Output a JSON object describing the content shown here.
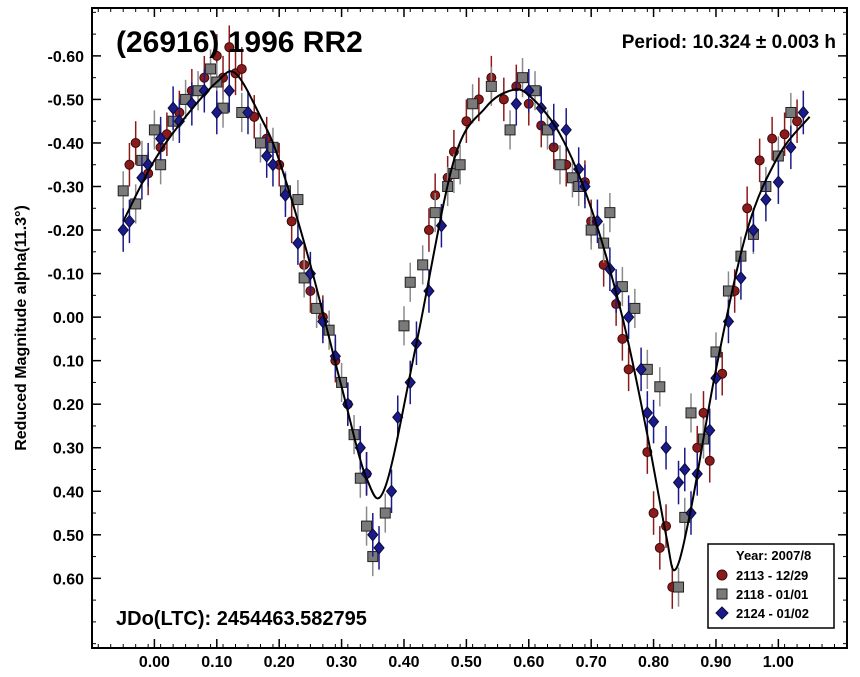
{
  "chart_data": {
    "type": "scatter",
    "title": "(26916) 1996 RR2",
    "period_text": "Period: 10.324 ± 0.003 h",
    "jd_text": "JDo(LTC): 2454463.582795",
    "ylabel": "Reduced Magnitude alpha(11.3°)",
    "xlabel": "",
    "xlim": [
      -0.1,
      1.11
    ],
    "ylim": [
      -0.71,
      0.76
    ],
    "y_inverted": true,
    "x_ticks": [
      "0.00",
      "0.10",
      "0.20",
      "0.30",
      "0.40",
      "0.50",
      "0.60",
      "0.70",
      "0.80",
      "0.90",
      "1.00"
    ],
    "y_ticks": [
      "-0.60",
      "-0.50",
      "-0.40",
      "-0.30",
      "-0.20",
      "-0.10",
      "0.00",
      "0.10",
      "0.20",
      "0.30",
      "0.40",
      "0.50",
      "0.60"
    ],
    "legend": {
      "title": "Year: 2007/8",
      "position": "bottom-right",
      "entries": [
        {
          "label": "2113 - 12/29",
          "color": "#8b1a1a",
          "marker": "circle"
        },
        {
          "label": "2118 - 01/01",
          "color": "#7a7a7a",
          "marker": "square"
        },
        {
          "label": "2124 - 01/02",
          "color": "#1a1a8b",
          "marker": "diamond"
        }
      ]
    },
    "fit_curve": {
      "x": [
        -0.05,
        0.0,
        0.05,
        0.1,
        0.13,
        0.17,
        0.2,
        0.25,
        0.3,
        0.34,
        0.37,
        0.42,
        0.48,
        0.53,
        0.57,
        0.6,
        0.65,
        0.7,
        0.75,
        0.79,
        0.82,
        0.835,
        0.86,
        0.9,
        0.95,
        1.0,
        1.05
      ],
      "y": [
        -0.22,
        -0.36,
        -0.46,
        -0.54,
        -0.56,
        -0.46,
        -0.36,
        -0.12,
        0.16,
        0.37,
        0.39,
        0.06,
        -0.36,
        -0.48,
        -0.52,
        -0.51,
        -0.42,
        -0.25,
        0.0,
        0.27,
        0.5,
        0.58,
        0.44,
        0.12,
        -0.2,
        -0.37,
        -0.46
      ]
    },
    "series": [
      {
        "name": "2113 - 12/29",
        "x": [
          -0.04,
          -0.03,
          -0.01,
          0.01,
          0.02,
          0.04,
          0.06,
          0.08,
          0.1,
          0.11,
          0.12,
          0.13,
          0.14,
          0.16,
          0.18,
          0.2,
          0.22,
          0.24,
          0.25,
          0.27,
          0.29,
          0.31,
          0.34,
          0.44,
          0.45,
          0.47,
          0.48,
          0.5,
          0.52,
          0.54,
          0.56,
          0.58,
          0.6,
          0.62,
          0.64,
          0.66,
          0.69,
          0.7,
          0.72,
          0.74,
          0.75,
          0.76,
          0.79,
          0.8,
          0.81,
          0.82,
          0.83,
          0.87,
          0.88,
          0.89,
          0.91,
          0.93,
          0.95,
          0.97,
          0.99,
          1.01,
          1.03
        ],
        "y": [
          -0.35,
          -0.4,
          -0.33,
          -0.39,
          -0.42,
          -0.47,
          -0.52,
          -0.55,
          -0.6,
          -0.55,
          -0.62,
          -0.56,
          -0.57,
          -0.46,
          -0.41,
          -0.35,
          -0.22,
          -0.12,
          -0.06,
          0.0,
          0.1,
          0.2,
          0.36,
          -0.2,
          -0.28,
          -0.32,
          -0.38,
          -0.45,
          -0.5,
          -0.55,
          -0.5,
          -0.53,
          -0.49,
          -0.44,
          -0.39,
          -0.35,
          -0.31,
          -0.22,
          -0.12,
          -0.03,
          0.05,
          0.12,
          0.31,
          0.45,
          0.53,
          0.48,
          0.62,
          0.3,
          0.22,
          0.33,
          0.13,
          -0.06,
          -0.25,
          -0.36,
          -0.41,
          -0.42,
          -0.45
        ]
      },
      {
        "name": "2118 - 01/01",
        "x": [
          -0.05,
          -0.03,
          -0.02,
          0.0,
          0.01,
          0.03,
          0.05,
          0.07,
          0.09,
          0.1,
          0.11,
          0.14,
          0.17,
          0.19,
          0.21,
          0.23,
          0.24,
          0.26,
          0.28,
          0.3,
          0.32,
          0.33,
          0.34,
          0.35,
          0.37,
          0.4,
          0.41,
          0.43,
          0.45,
          0.47,
          0.48,
          0.49,
          0.51,
          0.54,
          0.57,
          0.59,
          0.61,
          0.63,
          0.65,
          0.67,
          0.68,
          0.7,
          0.72,
          0.73,
          0.75,
          0.77,
          0.79,
          0.81,
          0.84,
          0.85,
          0.86,
          0.88,
          0.9,
          0.92,
          0.94,
          0.96,
          0.98,
          1.0,
          1.02
        ],
        "y": [
          -0.29,
          -0.26,
          -0.36,
          -0.43,
          -0.35,
          -0.45,
          -0.5,
          -0.52,
          -0.57,
          -0.54,
          -0.48,
          -0.47,
          -0.4,
          -0.39,
          -0.29,
          -0.27,
          -0.09,
          -0.02,
          0.03,
          0.15,
          0.27,
          0.37,
          0.48,
          0.55,
          0.45,
          0.02,
          -0.08,
          -0.12,
          -0.24,
          -0.3,
          -0.33,
          -0.35,
          -0.49,
          -0.53,
          -0.43,
          -0.55,
          -0.52,
          -0.43,
          -0.35,
          -0.32,
          -0.3,
          -0.2,
          -0.17,
          -0.24,
          -0.07,
          -0.02,
          0.12,
          0.16,
          0.62,
          0.46,
          0.22,
          0.28,
          0.08,
          -0.06,
          -0.14,
          -0.19,
          -0.3,
          -0.37,
          -0.47
        ]
      },
      {
        "name": "2124 - 01/02",
        "x": [
          -0.05,
          -0.04,
          -0.02,
          -0.01,
          0.01,
          0.03,
          0.04,
          0.06,
          0.08,
          0.1,
          0.12,
          0.15,
          0.18,
          0.19,
          0.21,
          0.23,
          0.25,
          0.27,
          0.29,
          0.31,
          0.33,
          0.34,
          0.35,
          0.36,
          0.38,
          0.39,
          0.41,
          0.42,
          0.44,
          0.46,
          0.58,
          0.6,
          0.62,
          0.64,
          0.66,
          0.68,
          0.69,
          0.71,
          0.73,
          0.74,
          0.76,
          0.78,
          0.79,
          0.8,
          0.82,
          0.84,
          0.85,
          0.86,
          0.87,
          0.89,
          0.9,
          0.92,
          0.94,
          0.96,
          0.98,
          1.0,
          1.02,
          1.04
        ],
        "y": [
          -0.2,
          -0.22,
          -0.32,
          -0.35,
          -0.41,
          -0.48,
          -0.45,
          -0.49,
          -0.52,
          -0.47,
          -0.52,
          -0.47,
          -0.37,
          -0.35,
          -0.28,
          -0.17,
          -0.1,
          0.01,
          0.09,
          0.2,
          0.3,
          0.36,
          0.5,
          0.53,
          0.4,
          0.23,
          0.15,
          0.06,
          -0.06,
          -0.21,
          -0.49,
          -0.52,
          -0.48,
          -0.44,
          -0.43,
          -0.34,
          -0.3,
          -0.22,
          -0.11,
          -0.06,
          0.0,
          0.12,
          0.22,
          0.24,
          0.3,
          0.38,
          0.35,
          0.45,
          0.36,
          0.26,
          0.14,
          0.01,
          -0.09,
          -0.2,
          -0.27,
          -0.31,
          -0.39,
          -0.47
        ]
      }
    ]
  }
}
